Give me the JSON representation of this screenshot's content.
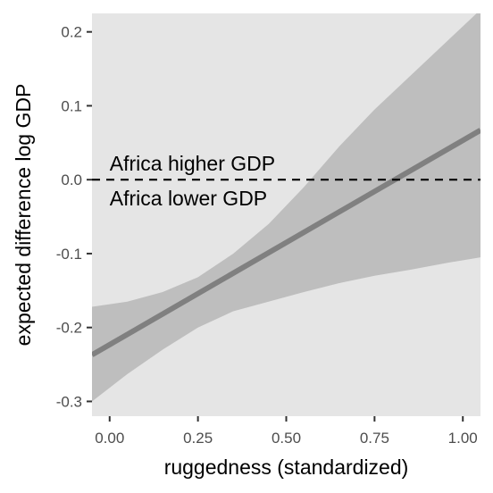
{
  "chart_data": {
    "type": "line",
    "title": "",
    "xlabel": "ruggedness (standardized)",
    "ylabel": "expected difference log GDP",
    "xlim": [
      -0.05,
      1.05
    ],
    "ylim": [
      -0.32,
      0.225
    ],
    "x_ticks": [
      0,
      0.25,
      0.5,
      0.75,
      1
    ],
    "x_tick_labels": [
      "0.00",
      "0.25",
      "0.50",
      "0.75",
      "1.00"
    ],
    "y_ticks": [
      -0.3,
      -0.2,
      -0.1,
      0,
      0.1,
      0.2
    ],
    "y_tick_labels": [
      "-0.3",
      "-0.2",
      "-0.1",
      "0.0",
      "0.1",
      "0.2"
    ],
    "grid": false,
    "legend": "none",
    "colors": {
      "panel_background": "#e5e5e5",
      "ribbon": "#bebebe",
      "line": "#808080",
      "reference_line": "#000000"
    },
    "series": [
      {
        "x": [
          -0.05,
          1.05
        ],
        "y": [
          -0.237,
          0.067
        ]
      }
    ],
    "ribbon": {
      "x": [
        -0.05,
        0.05,
        0.15,
        0.25,
        0.35,
        0.45,
        0.55,
        0.65,
        0.75,
        0.85,
        0.95,
        1.05
      ],
      "lower": [
        -0.3,
        -0.263,
        -0.23,
        -0.2,
        -0.178,
        -0.165,
        -0.152,
        -0.14,
        -0.13,
        -0.122,
        -0.113,
        -0.105
      ],
      "upper": [
        -0.172,
        -0.165,
        -0.152,
        -0.132,
        -0.1,
        -0.06,
        -0.01,
        0.045,
        0.095,
        0.14,
        0.185,
        0.23
      ]
    },
    "reference_line": {
      "y": 0,
      "style": "dashed"
    },
    "annotations": [
      {
        "text": "Africa higher GDP",
        "x": 0.0,
        "y": 0.022
      },
      {
        "text": "Africa lower GDP",
        "x": 0.0,
        "y": -0.025
      }
    ]
  }
}
